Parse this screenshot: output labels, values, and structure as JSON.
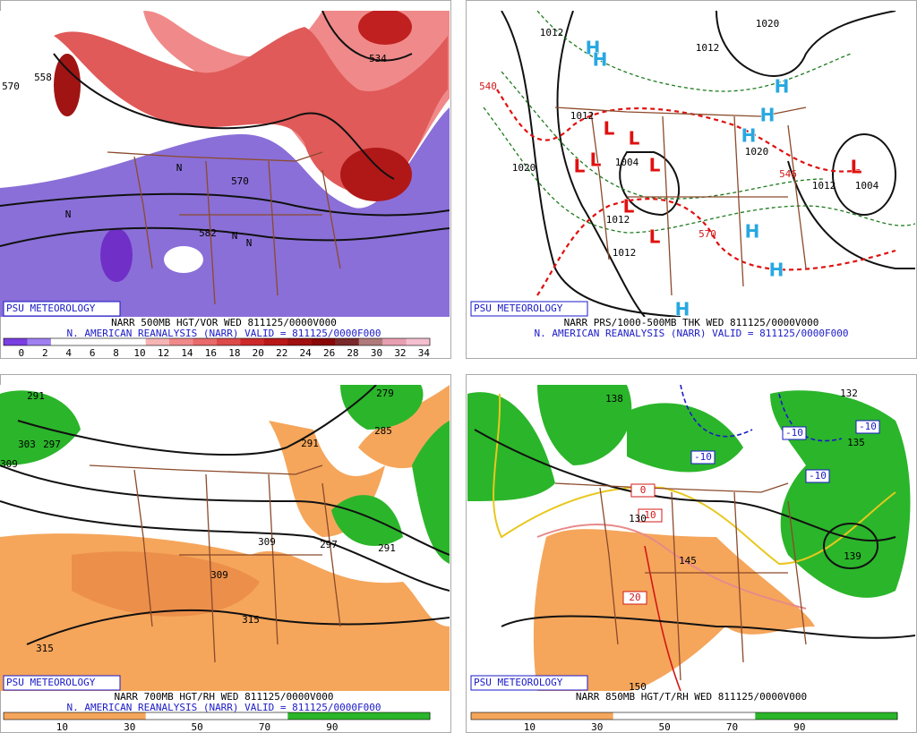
{
  "panels": [
    {
      "badge": "PSU METEOROLOGY",
      "line1": "NARR 500MB HGT/VOR WED 811125/0000V000",
      "line2": "N. AMERICAN REANALYSIS (NARR) VALID = 811125/0000F000",
      "colorbar_labels": [
        "0",
        "2",
        "4",
        "6",
        "8",
        "10",
        "12",
        "14",
        "16",
        "18",
        "20",
        "22",
        "24",
        "26",
        "28",
        "30",
        "32",
        "34"
      ],
      "map_labels": [
        "570",
        "558",
        "534",
        "570",
        "582",
        "N",
        "N",
        "N",
        "N"
      ],
      "symbols": []
    },
    {
      "badge": "PSU METEOROLOGY",
      "line1": "NARR PRS/1000-500MB THK WED 811125/0000V000",
      "line2": "N. AMERICAN REANALYSIS (NARR) VALID = 811125/0000F000",
      "colorbar_labels": [],
      "map_labels": [
        "1012",
        "1020",
        "1012",
        "1012",
        "1020",
        "1004",
        "1020",
        "1012",
        "1004",
        "1012",
        "1012",
        "540",
        "546",
        "570"
      ],
      "symbols": [
        "H",
        "H",
        "H",
        "H",
        "H",
        "H",
        "H",
        "H",
        "L",
        "L",
        "L",
        "L",
        "L",
        "L",
        "L",
        "L"
      ]
    },
    {
      "badge": "PSU METEOROLOGY",
      "line1": "NARR 700MB HGT/RH WED 811125/0000V000",
      "line2": "N. AMERICAN REANALYSIS (NARR) VALID = 811125/0000F000",
      "colorbar_labels": [
        "10",
        "30",
        "50",
        "70",
        "90"
      ],
      "map_labels": [
        "291",
        "279",
        "285",
        "291",
        "297",
        "303",
        "309",
        "309",
        "297",
        "291",
        "309",
        "315",
        "315"
      ],
      "symbols": []
    },
    {
      "badge": "PSU METEOROLOGY",
      "line1": "NARR 850MB HGT/T/RH WED 811125/0000V000",
      "line2": "",
      "colorbar_labels": [
        "10",
        "30",
        "50",
        "70",
        "90"
      ],
      "map_labels": [
        "138",
        "132",
        "135",
        "-10",
        "-10",
        "-10",
        "-10",
        "0",
        "10",
        "130",
        "20",
        "145",
        "150",
        "139"
      ],
      "symbols": []
    }
  ]
}
